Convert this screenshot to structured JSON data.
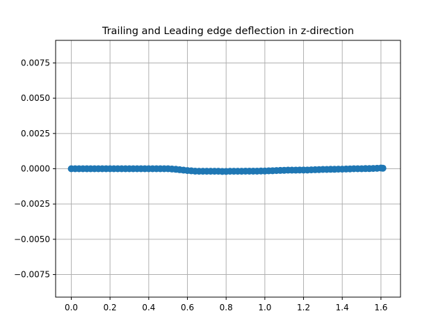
{
  "chart_data": {
    "type": "scatter",
    "title": "Trailing and Leading edge deflection in z-direction",
    "xlabel": "",
    "ylabel": "",
    "xlim": [
      -0.081,
      1.701
    ],
    "ylim": [
      -0.0091,
      0.0091
    ],
    "grid": true,
    "x_ticks": [
      0.0,
      0.2,
      0.4,
      0.6,
      0.8,
      1.0,
      1.2,
      1.4,
      1.6
    ],
    "x_tick_labels": [
      "0.0",
      "0.2",
      "0.4",
      "0.6",
      "0.8",
      "1.0",
      "1.2",
      "1.4",
      "1.6"
    ],
    "y_ticks": [
      0.0075,
      0.005,
      0.0025,
      0.0,
      -0.0025,
      -0.005,
      -0.0075
    ],
    "y_tick_labels": [
      "0.0075",
      "0.0050",
      "0.0025",
      "0.0000",
      "−0.0025",
      "−0.0050",
      "−0.0075"
    ],
    "marker_color": "#1f77b4",
    "series": [
      {
        "x": [
          0.0,
          0.02,
          0.04,
          0.06,
          0.08,
          0.1,
          0.12,
          0.14,
          0.16,
          0.18,
          0.2,
          0.22,
          0.24,
          0.26,
          0.28,
          0.3,
          0.32,
          0.34,
          0.36,
          0.38,
          0.4,
          0.42,
          0.44,
          0.46,
          0.48,
          0.5,
          0.52,
          0.54,
          0.56,
          0.58,
          0.6,
          0.62,
          0.64,
          0.66,
          0.68,
          0.7,
          0.72,
          0.74,
          0.76,
          0.78,
          0.8,
          0.82,
          0.84,
          0.86,
          0.88,
          0.9,
          0.92,
          0.94,
          0.96,
          0.98,
          1.0,
          1.02,
          1.04,
          1.06,
          1.08,
          1.1,
          1.12,
          1.14,
          1.16,
          1.18,
          1.2,
          1.22,
          1.24,
          1.26,
          1.28,
          1.3,
          1.32,
          1.34,
          1.36,
          1.38,
          1.4,
          1.42,
          1.44,
          1.46,
          1.48,
          1.5,
          1.52,
          1.54,
          1.56,
          1.58,
          1.6,
          1.61
        ],
        "y": [
          0.0,
          0.0,
          0.0,
          0.0,
          0.0,
          0.0,
          0.0,
          0.0,
          0.0,
          0.0,
          0.0,
          0.0,
          0.0,
          0.0,
          0.0,
          0.0,
          0.0,
          0.0,
          0.0,
          0.0,
          0.0,
          0.0,
          0.0,
          0.0,
          0.0,
          0.0,
          -2e-05,
          -4e-05,
          -7e-05,
          -0.0001,
          -0.00013,
          -0.00015,
          -0.00017,
          -0.00018,
          -0.00018,
          -0.00018,
          -0.00018,
          -0.00018,
          -0.00018,
          -0.00019,
          -0.00019,
          -0.00018,
          -0.00018,
          -0.00018,
          -0.00018,
          -0.00017,
          -0.00017,
          -0.00017,
          -0.00017,
          -0.00016,
          -0.00016,
          -0.00015,
          -0.00014,
          -0.00013,
          -0.00012,
          -0.00011,
          -0.0001,
          -0.0001,
          -0.0001,
          -9e-05,
          -9e-05,
          -9e-05,
          -8e-05,
          -7e-05,
          -6e-05,
          -5e-05,
          -5e-05,
          -4e-05,
          -4e-05,
          -3e-05,
          -3e-05,
          -2e-05,
          -1e-05,
          0.0,
          0.0,
          0.0,
          1e-05,
          1e-05,
          2e-05,
          3e-05,
          5e-05,
          4e-05
        ]
      }
    ]
  }
}
